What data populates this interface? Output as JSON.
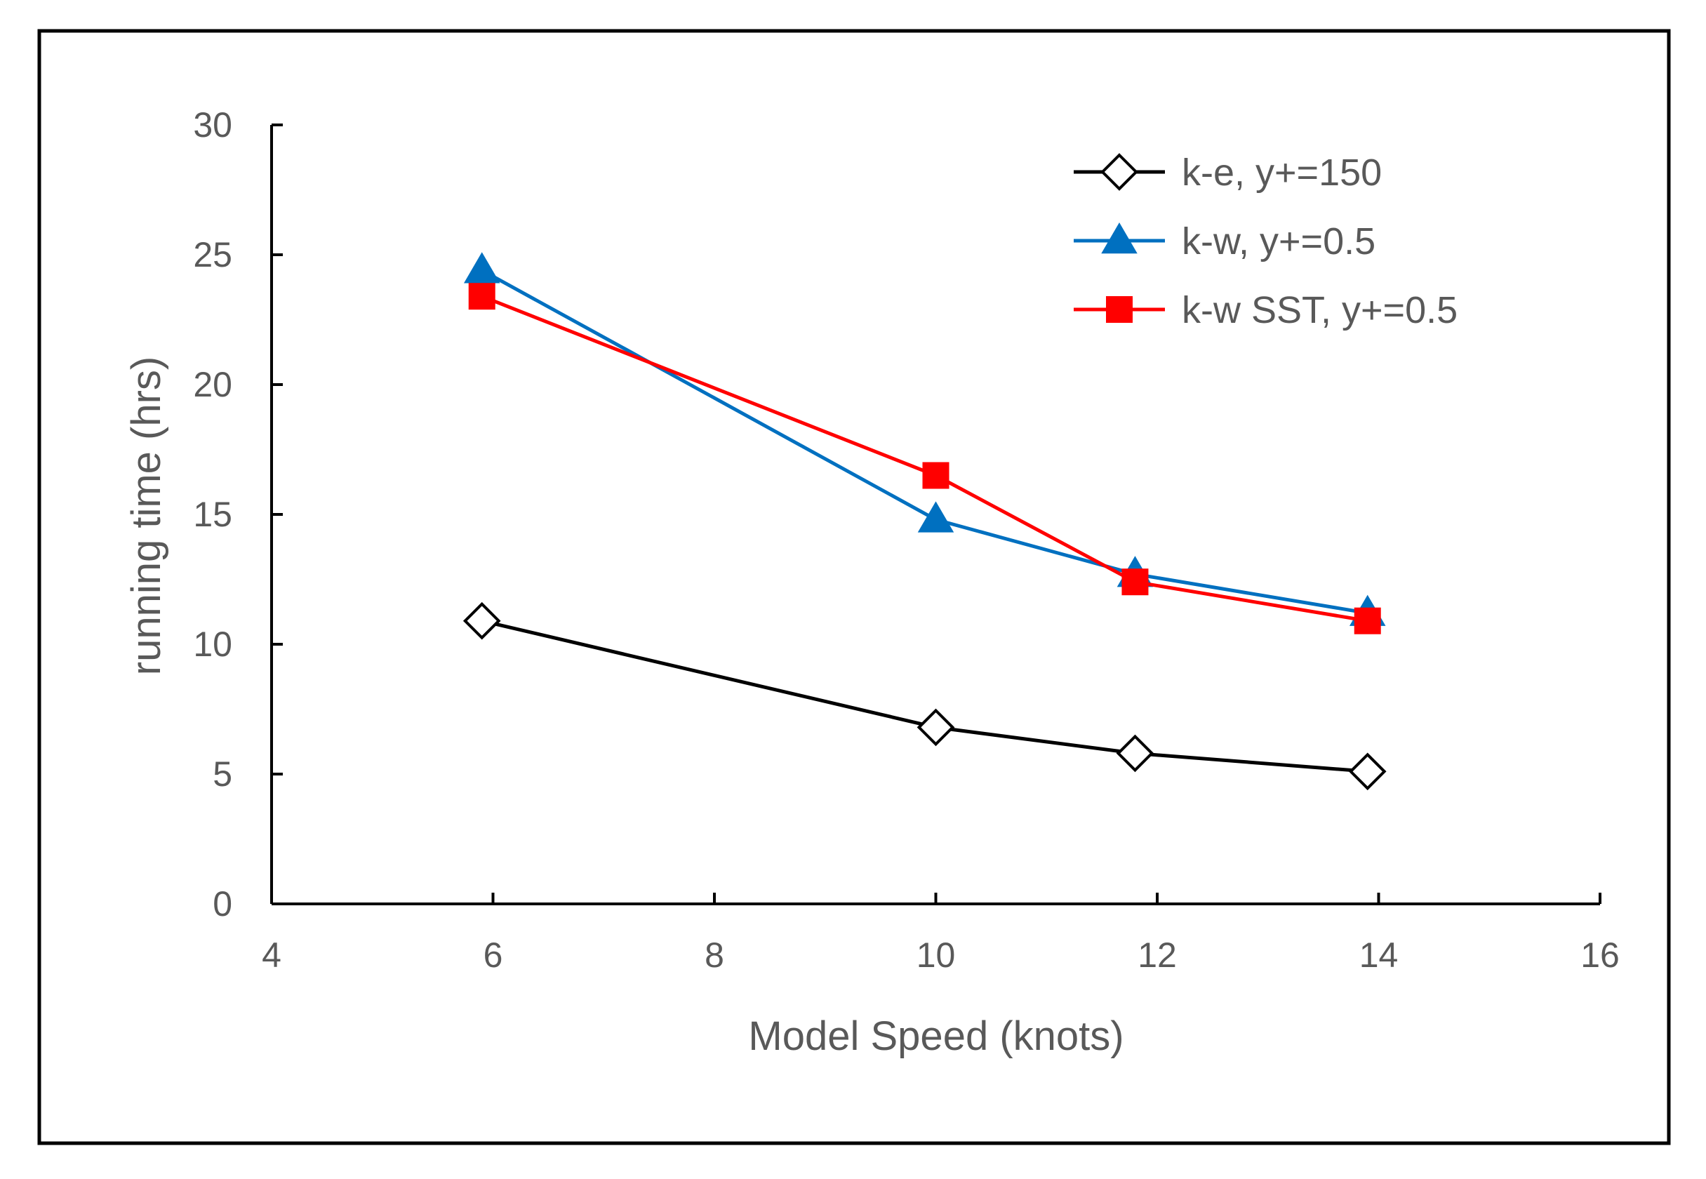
{
  "chart_data": {
    "type": "line",
    "title": "",
    "xlabel": "Model Speed (knots)",
    "ylabel": "running time (hrs)",
    "xlim": [
      4,
      16
    ],
    "ylim": [
      0,
      30
    ],
    "xticks": [
      4,
      6,
      8,
      10,
      12,
      14,
      16
    ],
    "yticks": [
      0,
      5,
      10,
      15,
      20,
      25,
      30
    ],
    "grid": false,
    "legend_position": "top-right",
    "x": [
      5.9,
      10.0,
      11.8,
      13.9
    ],
    "series": [
      {
        "name": "k-e, y+=150",
        "color": "#000000",
        "marker": "diamond-open",
        "values": [
          10.9,
          6.8,
          5.8,
          5.1
        ]
      },
      {
        "name": "k-w, y+=0.5",
        "color": "#0070C0",
        "marker": "triangle",
        "values": [
          24.4,
          14.8,
          12.7,
          11.2
        ]
      },
      {
        "name": "k-w SST, y+=0.5",
        "color": "#FF0000",
        "marker": "square",
        "values": [
          23.4,
          16.5,
          12.4,
          10.9
        ]
      }
    ]
  }
}
